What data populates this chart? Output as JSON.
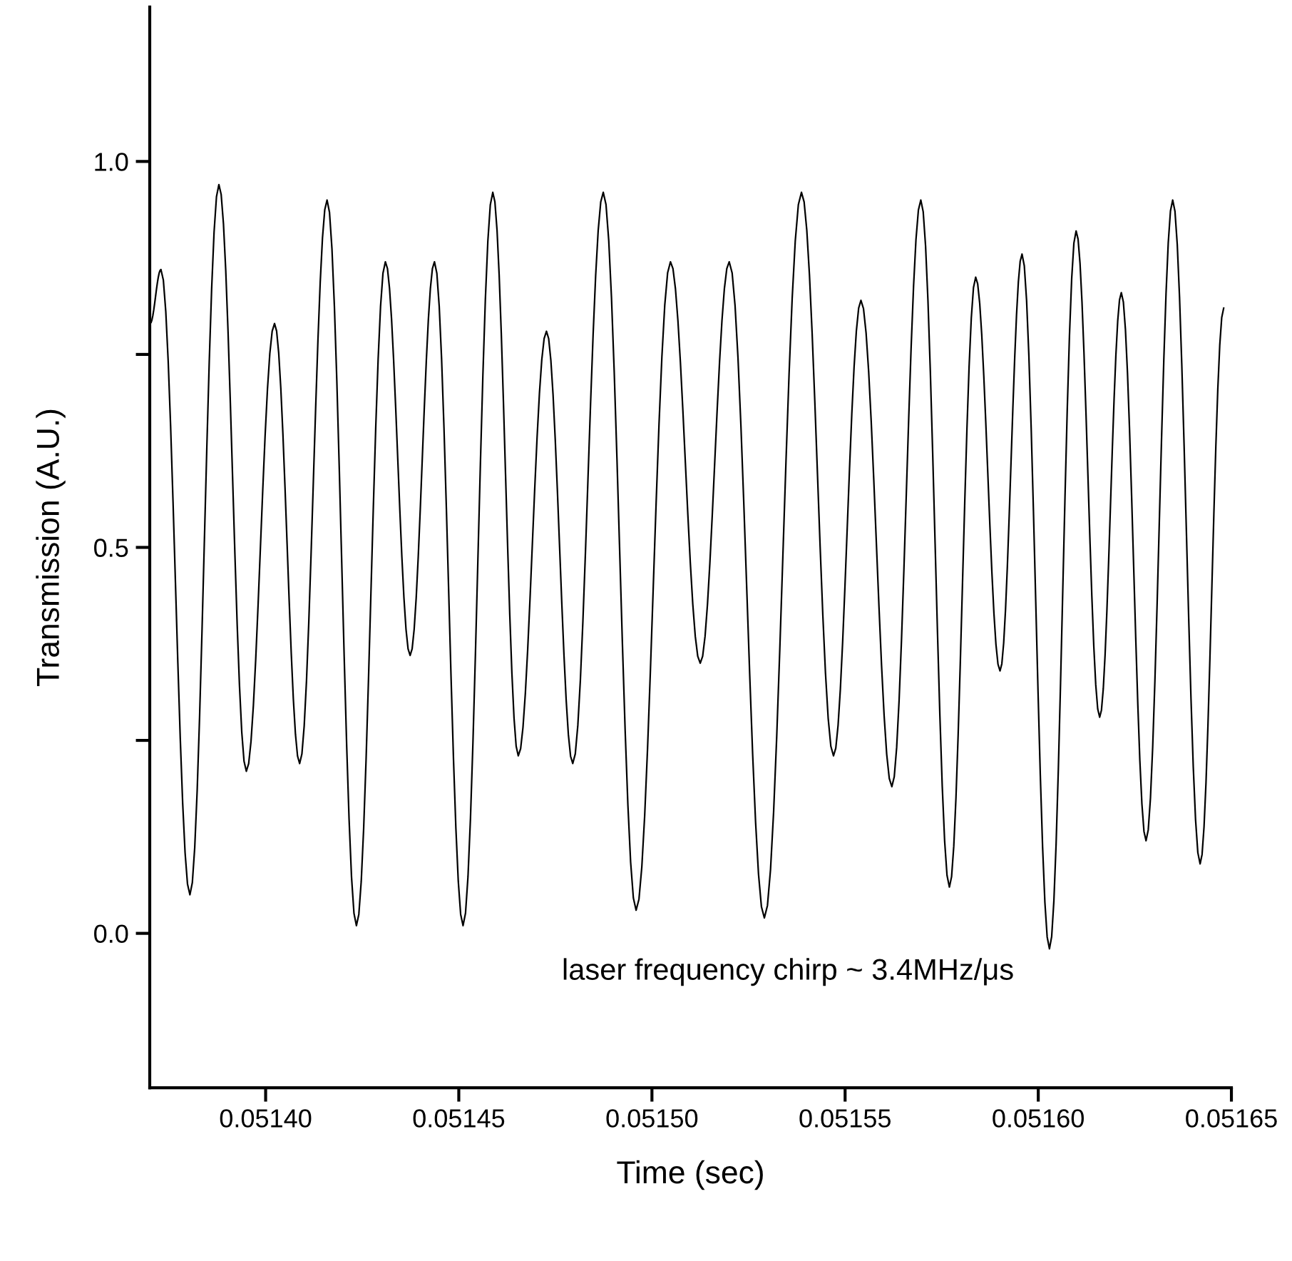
{
  "chart_data": {
    "type": "line",
    "xlabel": "Time (sec)",
    "ylabel": "Transmission (A.U.)",
    "annotations": [
      "laser frequency chirp ~ 3.4MHz/μs"
    ],
    "x": [
      0.0513701,
      0.0513729,
      0.0513804,
      0.0513879,
      0.051395,
      0.0514023,
      0.0514088,
      0.0514159,
      0.0514235,
      0.051431,
      0.0514374,
      0.0514437,
      0.0514511,
      0.0514588,
      0.0514654,
      0.0514727,
      0.0514795,
      0.0514874,
      0.0514959,
      0.0515048,
      0.0515125,
      0.05152,
      0.0515291,
      0.0515387,
      0.051547,
      0.0515541,
      0.0515621,
      0.0515696,
      0.051577,
      0.0515838,
      0.0515901,
      0.0515958,
      0.0516029,
      0.0516098,
      0.0516159,
      0.0516215,
      0.0516279,
      0.0516348,
      0.0516419,
      0.051648
    ],
    "series": [
      {
        "color": "#000000",
        "values": [
          0.79,
          0.86,
          0.05,
          0.97,
          0.21,
          0.79,
          0.22,
          0.95,
          0.01,
          0.87,
          0.36,
          0.87,
          0.01,
          0.96,
          0.23,
          0.78,
          0.22,
          0.96,
          0.03,
          0.87,
          0.35,
          0.87,
          0.02,
          0.96,
          0.23,
          0.82,
          0.19,
          0.95,
          0.06,
          0.85,
          0.34,
          0.88,
          -0.02,
          0.91,
          0.28,
          0.83,
          0.12,
          0.95,
          0.09,
          0.81
        ]
      }
    ],
    "xlim": [
      0.05137,
      0.05165
    ],
    "xticks": [
      {
        "value": 0.0514,
        "label": "0.05140"
      },
      {
        "value": 0.05145,
        "label": "0.05145"
      },
      {
        "value": 0.0515,
        "label": "0.05150"
      },
      {
        "value": 0.05155,
        "label": "0.05155"
      },
      {
        "value": 0.0516,
        "label": "0.05160"
      },
      {
        "value": 0.05165,
        "label": "0.05165"
      }
    ],
    "ylim": [
      -0.2,
      1.2
    ],
    "yticks": [
      {
        "value": 0.0,
        "label": "0.0"
      },
      {
        "value": 0.25,
        "label": null
      },
      {
        "value": 0.5,
        "label": "0.5"
      },
      {
        "value": 0.75,
        "label": null
      },
      {
        "value": 1.0,
        "label": "1.0"
      }
    ],
    "marker": "none",
    "line_style": "solid"
  }
}
